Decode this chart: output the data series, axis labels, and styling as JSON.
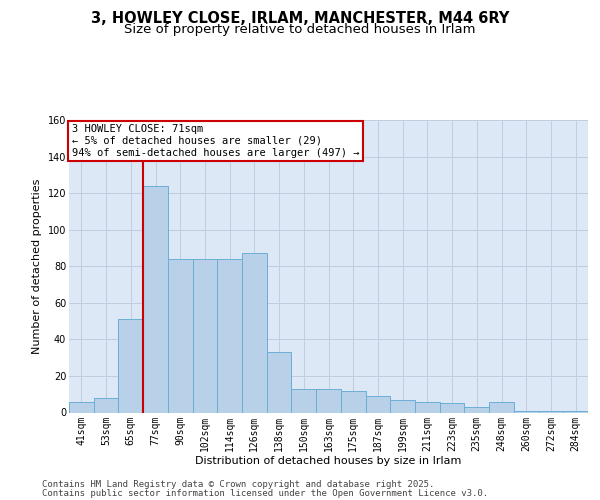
{
  "title1": "3, HOWLEY CLOSE, IRLAM, MANCHESTER, M44 6RY",
  "title2": "Size of property relative to detached houses in Irlam",
  "xlabel": "Distribution of detached houses by size in Irlam",
  "ylabel": "Number of detached properties",
  "categories": [
    "41sqm",
    "53sqm",
    "65sqm",
    "77sqm",
    "90sqm",
    "102sqm",
    "114sqm",
    "126sqm",
    "138sqm",
    "150sqm",
    "163sqm",
    "175sqm",
    "187sqm",
    "199sqm",
    "211sqm",
    "223sqm",
    "235sqm",
    "248sqm",
    "260sqm",
    "272sqm",
    "284sqm"
  ],
  "values": [
    6,
    8,
    51,
    124,
    84,
    84,
    84,
    87,
    33,
    13,
    13,
    12,
    9,
    7,
    6,
    5,
    3,
    6,
    1,
    1,
    1
  ],
  "bar_color": "#b8d0e8",
  "bar_edge_color": "#6baed6",
  "red_line_x": 2.5,
  "annotation_line1": "3 HOWLEY CLOSE: 71sqm",
  "annotation_line2": "← 5% of detached houses are smaller (29)",
  "annotation_line3": "94% of semi-detached houses are larger (497) →",
  "annotation_box_color": "#ffffff",
  "annotation_border_color": "#cc0000",
  "ylim": [
    0,
    160
  ],
  "yticks": [
    0,
    20,
    40,
    60,
    80,
    100,
    120,
    140,
    160
  ],
  "footer1": "Contains HM Land Registry data © Crown copyright and database right 2025.",
  "footer2": "Contains public sector information licensed under the Open Government Licence v3.0.",
  "bg_color": "#ffffff",
  "plot_bg_color": "#dce8f5",
  "grid_color": "#c0cce0",
  "title1_fontsize": 10.5,
  "title2_fontsize": 9.5,
  "axis_label_fontsize": 8,
  "tick_fontsize": 7,
  "annot_fontsize": 7.5,
  "footer_fontsize": 6.5
}
